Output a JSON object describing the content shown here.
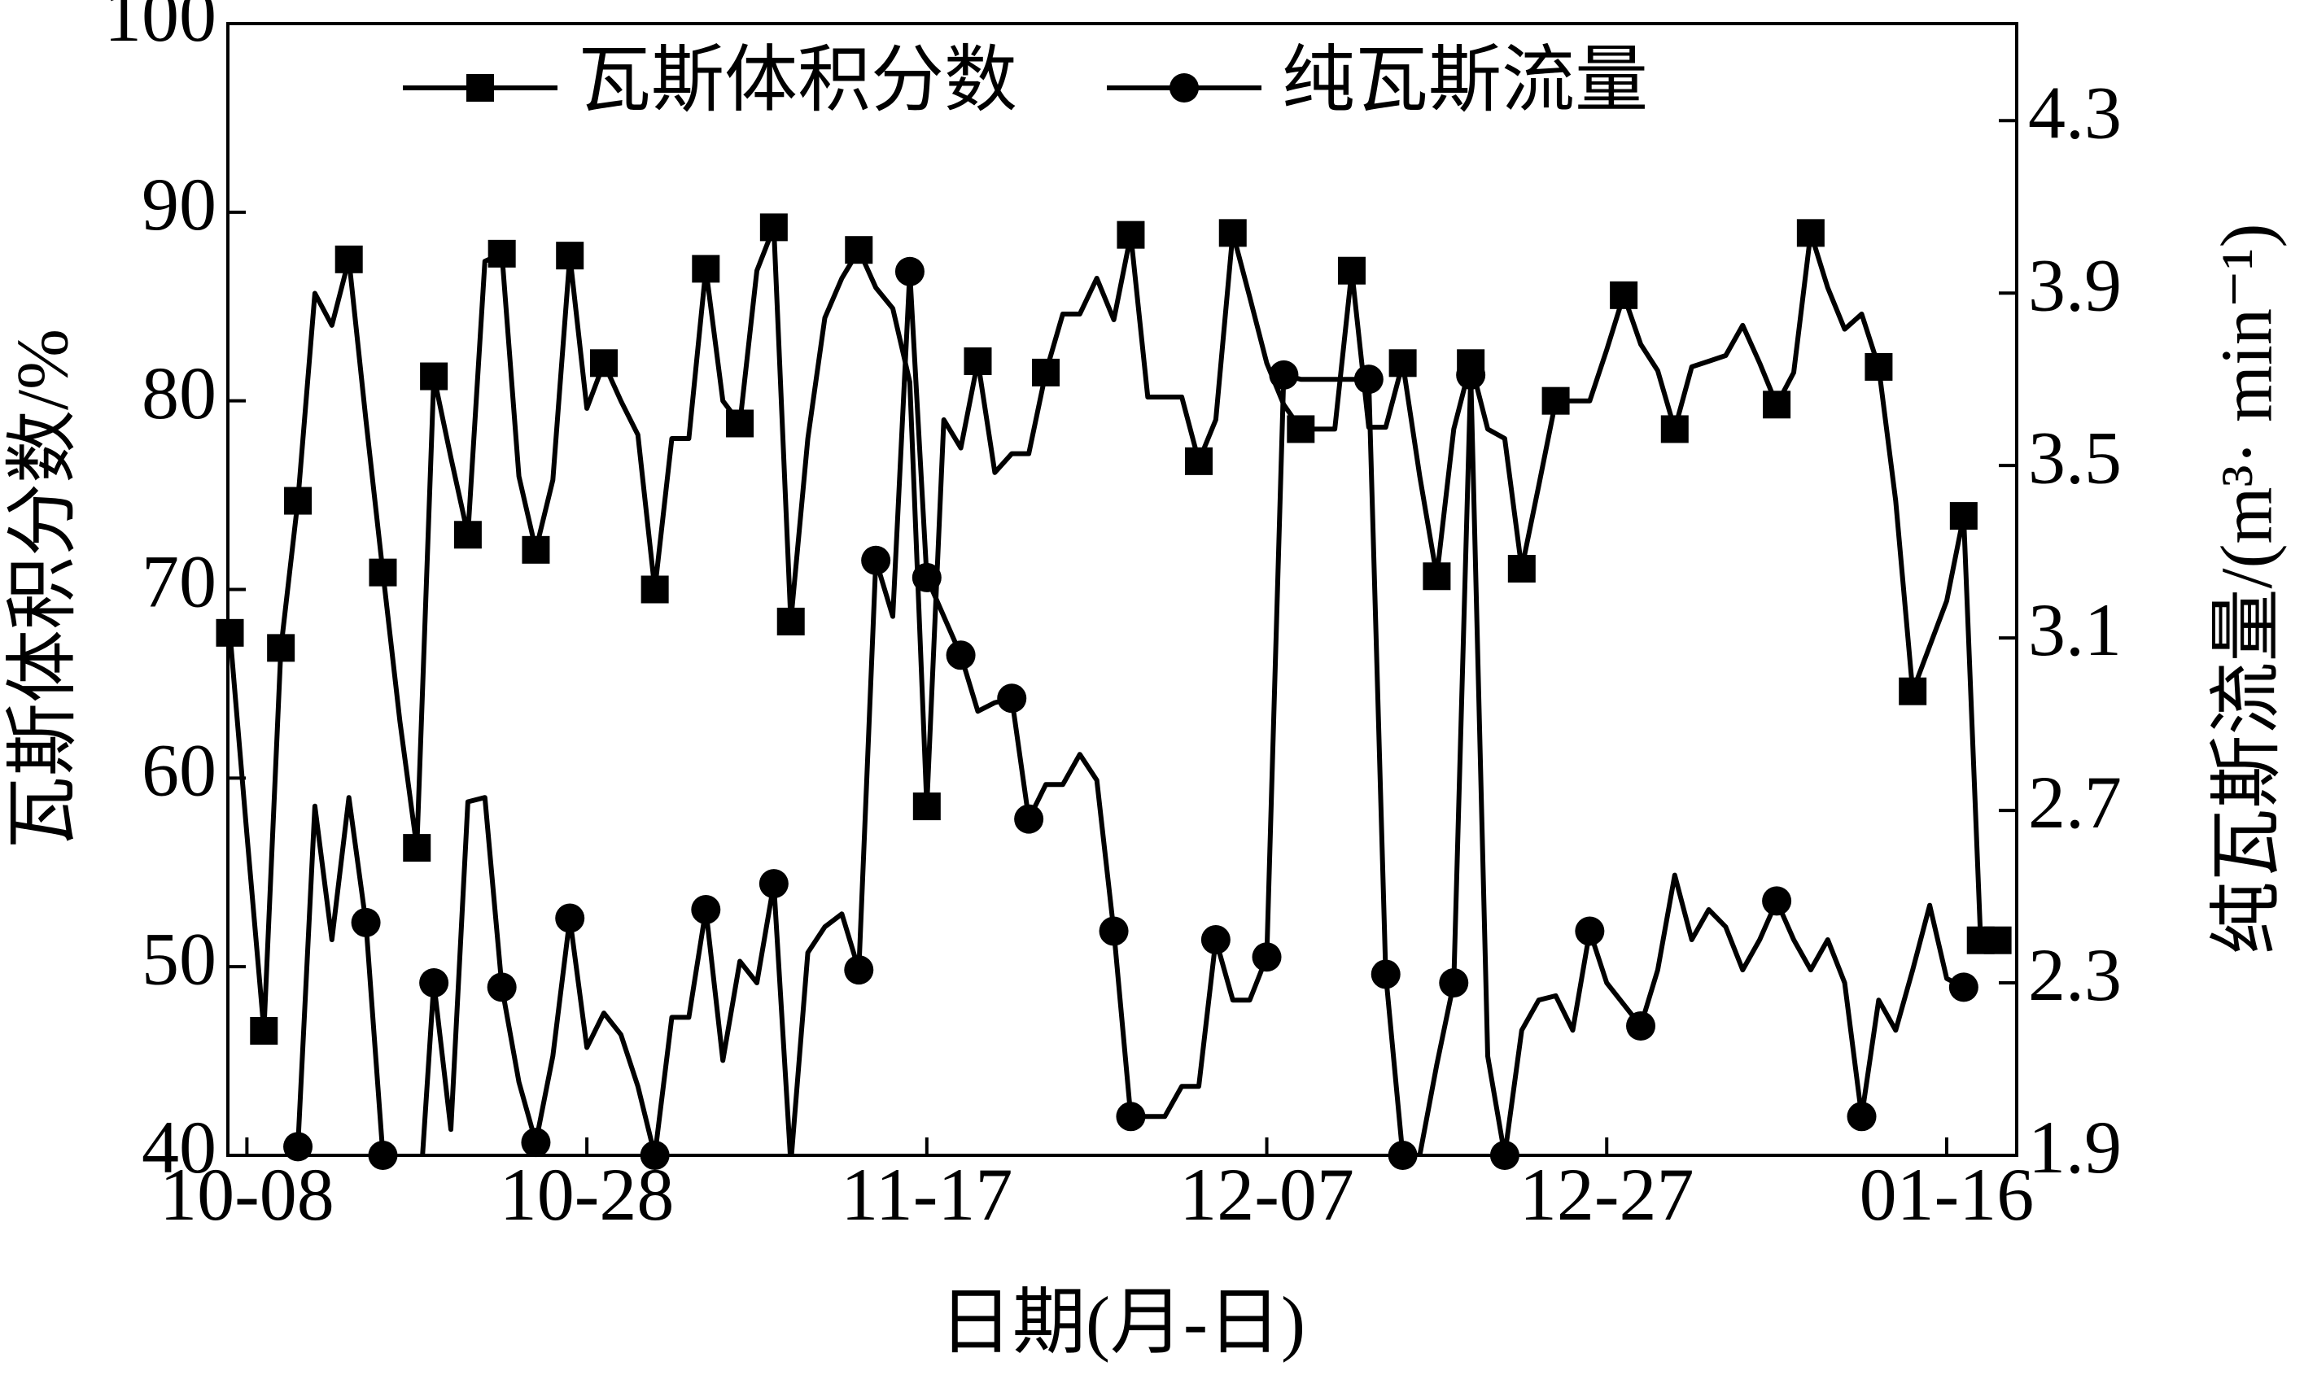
{
  "chart_data": {
    "type": "line",
    "legend": "top",
    "xlabel": "日期(月-日)",
    "ylabel": "瓦斯体积分数/%",
    "y2label": "纯瓦斯流量/(m³· min⁻¹)",
    "categories": [
      null,
      "10-08",
      null,
      null,
      null,
      null,
      null,
      null,
      null,
      null,
      null,
      null,
      null,
      null,
      null,
      null,
      null,
      null,
      null,
      null,
      null,
      "10-28",
      null,
      null,
      null,
      null,
      null,
      null,
      null,
      null,
      null,
      null,
      null,
      null,
      null,
      null,
      null,
      null,
      null,
      null,
      null,
      "11-17",
      null,
      null,
      null,
      null,
      null,
      null,
      null,
      null,
      null,
      null,
      null,
      null,
      null,
      null,
      null,
      null,
      null,
      null,
      null,
      "12-07",
      null,
      null,
      null,
      null,
      null,
      null,
      null,
      null,
      null,
      null,
      null,
      null,
      null,
      null,
      null,
      null,
      null,
      null,
      null,
      "12-27",
      null,
      null,
      null,
      null,
      null,
      null,
      null,
      null,
      null,
      null,
      null,
      null,
      null,
      null,
      null,
      null,
      null,
      null,
      null,
      "01-16",
      null,
      null,
      null,
      null
    ],
    "ylim": [
      40,
      100
    ],
    "yticks": [
      40,
      50,
      60,
      70,
      80,
      90,
      100
    ],
    "y2lim": [
      1.9,
      4.525
    ],
    "y2ticks": [
      1.9,
      2.3,
      2.7,
      3.1,
      3.5,
      3.9,
      4.3
    ],
    "series": [
      {
        "name": "瓦斯体积分数",
        "color": "#000000",
        "marker": "square",
        "values": [
          67.7,
          57,
          46.6,
          66.9,
          74.7,
          85.7,
          84,
          87.5,
          79,
          70.9,
          63,
          56.3,
          81.3,
          77,
          72.9,
          87.4,
          87.8,
          76,
          72.1,
          75.8,
          87.7,
          79.6,
          82,
          80,
          78.2,
          70,
          78,
          78,
          87,
          80,
          78.8,
          86.9,
          89.2,
          68.3,
          78,
          84.4,
          86.5,
          88,
          86,
          84.9,
          81,
          58.5,
          79,
          77.5,
          82.1,
          76.2,
          77.2,
          77.2,
          81.5,
          84.6,
          84.6,
          86.5,
          84.3,
          88.8,
          80.2,
          80.2,
          80.2,
          76.8,
          79,
          88.9,
          85.5,
          82,
          79.8,
          78.5,
          78.5,
          78.5,
          86.9,
          78.6,
          78.6,
          82,
          76,
          70.7,
          78.5,
          82,
          78.5,
          78,
          71.1,
          75.5,
          80,
          80,
          80,
          82.7,
          85.6,
          83,
          81.6,
          78.5,
          81.8,
          82.1,
          82.4,
          84,
          82,
          79.8,
          81.5,
          88.9,
          86,
          83.8,
          84.6,
          81.8,
          74.7,
          64.6,
          67,
          69.4,
          73.9,
          51.4,
          51.4,
          null
        ],
        "marker_indices": [
          0,
          2,
          3,
          4,
          7,
          9,
          11,
          12,
          14,
          16,
          18,
          20,
          22,
          25,
          28,
          30,
          32,
          33,
          37,
          41,
          44,
          48,
          53,
          57,
          59,
          63,
          66,
          69,
          71,
          73,
          76,
          78,
          82,
          85,
          91,
          93,
          97,
          99,
          102,
          103,
          104
        ]
      },
      {
        "name": "纯瓦斯流量",
        "color": "#000000",
        "marker": "circle",
        "axis": "y2",
        "values": [
          null,
          null,
          null,
          1.85,
          1.92,
          2.71,
          2.4,
          2.73,
          2.44,
          1.9,
          1.7,
          1.7,
          2.3,
          1.96,
          2.72,
          2.73,
          2.29,
          2.07,
          1.93,
          2.13,
          2.45,
          2.15,
          2.23,
          2.18,
          2.06,
          1.9,
          2.22,
          2.22,
          2.47,
          2.12,
          2.35,
          2.3,
          2.53,
          1.88,
          2.37,
          2.43,
          2.46,
          2.33,
          3.28,
          3.15,
          3.95,
          3.24,
          3.15,
          3.06,
          2.93,
          2.95,
          2.96,
          2.68,
          2.76,
          2.76,
          2.83,
          2.77,
          2.42,
          1.99,
          1.99,
          1.99,
          2.06,
          2.06,
          2.4,
          2.26,
          2.26,
          2.36,
          3.71,
          3.7,
          3.7,
          3.7,
          3.7,
          3.7,
          2.32,
          1.9,
          1.9,
          2.11,
          2.3,
          3.71,
          2.13,
          1.9,
          2.19,
          2.26,
          2.27,
          2.19,
          2.42,
          2.3,
          2.25,
          2.2,
          2.33,
          2.55,
          2.4,
          2.47,
          2.43,
          2.33,
          2.4,
          2.49,
          2.4,
          2.33,
          2.4,
          2.3,
          1.99,
          2.26,
          2.19,
          2.33,
          2.48,
          2.31,
          2.29,
          null,
          null,
          null
        ],
        "marker_indices": [
          4,
          8,
          9,
          12,
          16,
          18,
          20,
          25,
          28,
          32,
          37,
          38,
          40,
          41,
          43,
          46,
          47,
          52,
          53,
          58,
          61,
          62,
          67,
          68,
          69,
          72,
          73,
          75,
          80,
          83,
          91,
          96,
          102
        ]
      }
    ]
  }
}
